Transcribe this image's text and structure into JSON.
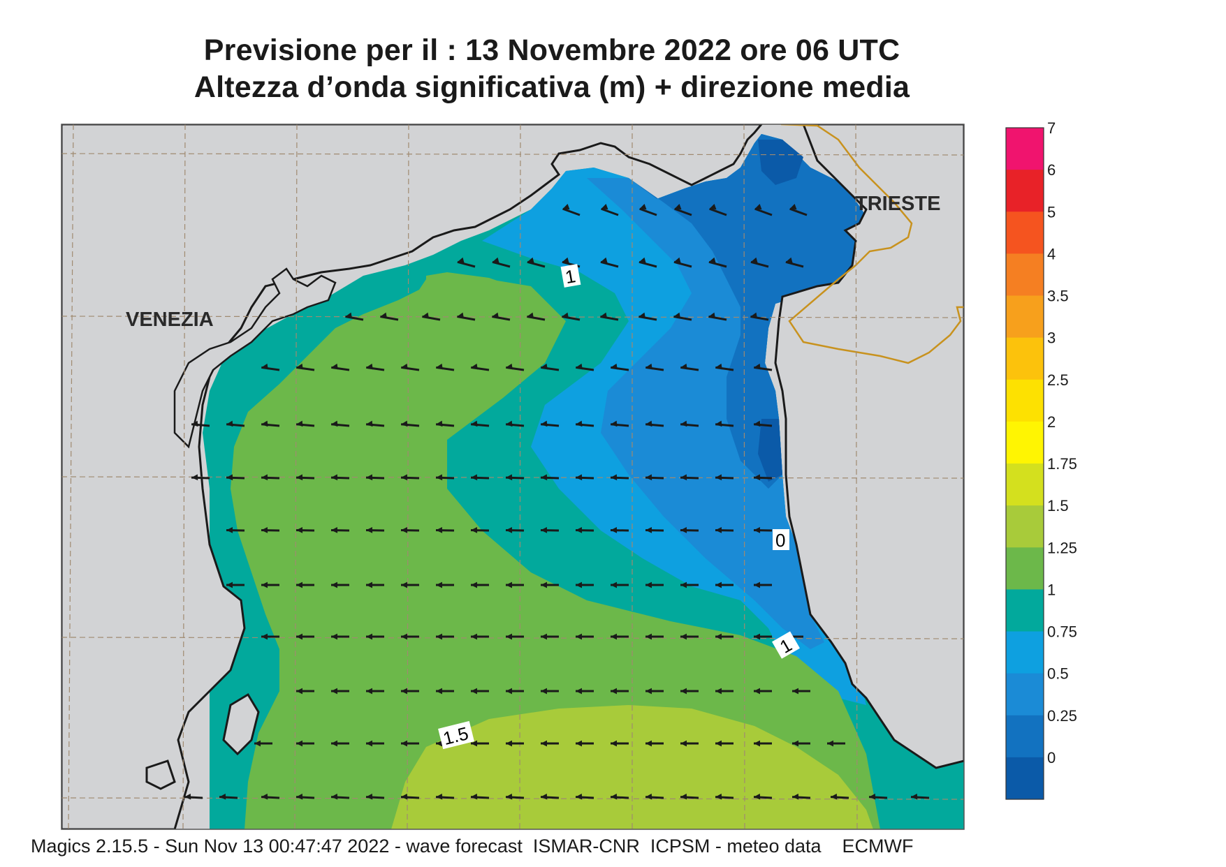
{
  "title": {
    "line1": "Previsione per il  :  13 Novembre  2022   ore 06 UTC",
    "line2": "Altezza d’onda significativa (m) + direzione media"
  },
  "cities": [
    {
      "name": "VENEZIA"
    },
    {
      "name": "TRIESTE"
    }
  ],
  "contour_labels": [
    "1",
    "0",
    "1",
    "1.5"
  ],
  "colorbar": {
    "levels": [
      "7",
      "6",
      "5",
      "4",
      "3.5",
      "3",
      "2.5",
      "2",
      "1.75",
      "1.5",
      "1.25",
      "1",
      "0.75",
      "0.5",
      "0.25",
      "0"
    ],
    "colors": [
      "#f0146e",
      "#e82228",
      "#f5541f",
      "#f57f22",
      "#f7a01c",
      "#fcc20c",
      "#fde101",
      "#fff502",
      "#d4e01e",
      "#a8cb3a",
      "#6cb84a",
      "#02a99c",
      "#0ea0e0",
      "#1b8bd6",
      "#1272c0",
      "#0b5aa8"
    ]
  },
  "colors": {
    "land": "#d2d3d5",
    "coast": "#1a1a1a",
    "border": "#c8921e",
    "grid": "#a08a70",
    "arrow": "#1a1a1a"
  },
  "footer": "Magics 2.15.5 - Sun Nov 13 00:47:47 2022 - wave forecast  ISMAR-CNR  ICPSM - meteo data    ECMWF"
}
